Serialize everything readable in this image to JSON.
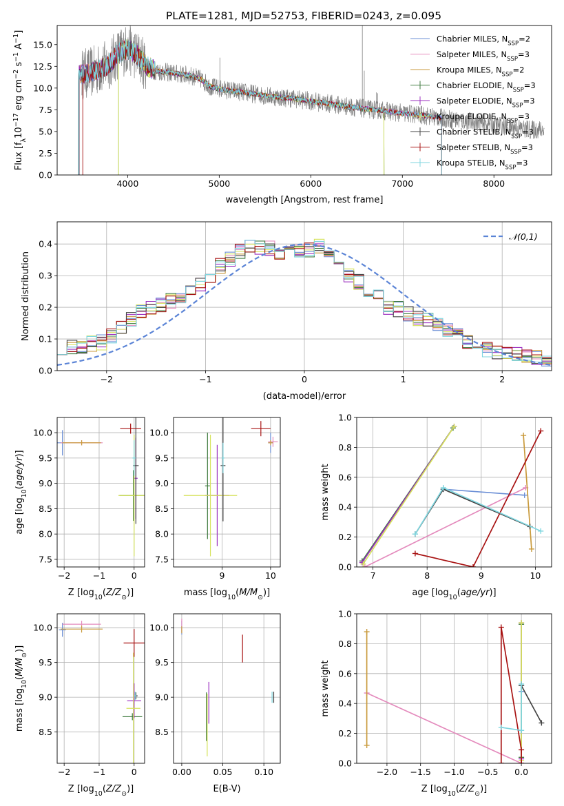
{
  "title": "PLATE=1281, MJD=52753, FIBERID=0243, z=0.095",
  "legend_models": [
    {
      "name": "Chabrier MILES, N",
      "sub": "SSP",
      "tail": "=2",
      "color": "#6b8fd6"
    },
    {
      "name": "Salpeter MILES, N",
      "sub": "SSP",
      "tail": "=3",
      "color": "#e48bbd"
    },
    {
      "name": "Kroupa MILES, N",
      "sub": "SSP",
      "tail": "=2",
      "color": "#c99a3c"
    },
    {
      "name": "Chabrier ELODIE, N",
      "sub": "SSP",
      "tail": "=3",
      "color": "#3f7a3f"
    },
    {
      "name": "Salpeter ELODIE, N",
      "sub": "SSP",
      "tail": "=3",
      "color": "#9b2fbf"
    },
    {
      "name": "Kroupa ELODIE, N",
      "sub": "SSP",
      "tail": "=3",
      "color": "#d6e35c"
    },
    {
      "name": "Chabrier STELIB, N",
      "sub": "SSP",
      "tail": "=3",
      "color": "#444444"
    },
    {
      "name": "Salpeter STELIB, N",
      "sub": "SSP",
      "tail": "=3",
      "color": "#a81313"
    },
    {
      "name": "Kroupa STELIB, N",
      "sub": "SSP",
      "tail": "=3",
      "color": "#7fd6df"
    }
  ],
  "chart_data": [
    {
      "id": "spectrum",
      "type": "line",
      "xlabel": "wavelength [Angstrom, rest frame]",
      "ylabel_parts": {
        "pre": "Flux [f",
        "sub1": "λ",
        "mid": "10",
        "sup1": "−17",
        "post": " erg cm",
        "sup2": "−2",
        "post2": " s",
        "sup3": "−1",
        "post3": " A",
        "sup4": "−1",
        "end": "]"
      },
      "xlim": [
        3230,
        8630
      ],
      "ylim": [
        0,
        17.2
      ],
      "xticks": [
        4000,
        5000,
        6000,
        7000,
        8000
      ],
      "yticks": [
        0.0,
        2.5,
        5.0,
        7.5,
        10.0,
        12.5,
        15.0
      ],
      "data_color": "#808080",
      "model_x": [
        3460,
        3600,
        3700,
        3800,
        3900,
        4000,
        4100,
        4200,
        4300,
        4500,
        4700,
        4800,
        4900,
        5000,
        5200,
        5400,
        5600,
        5800,
        6000,
        6200,
        6400,
        6600,
        6800,
        7000,
        7200,
        7400,
        7600,
        7800,
        8000,
        8200,
        8400
      ],
      "model_y": [
        11.5,
        11.8,
        12.2,
        12.8,
        14.0,
        14.5,
        13.8,
        12.6,
        12.0,
        11.7,
        11.4,
        11.0,
        10.2,
        9.9,
        9.6,
        9.3,
        9.0,
        8.8,
        8.5,
        8.2,
        7.9,
        7.6,
        7.4,
        7.1,
        6.9,
        6.6,
        6.3,
        6.1,
        5.8,
        5.5,
        5.2
      ],
      "data_spikes": [
        [
          4350,
          12.2
        ],
        [
          4862,
          11.0
        ],
        [
          5007,
          13.5
        ],
        [
          6300,
          9.0
        ],
        [
          6563,
          17.2
        ],
        [
          6584,
          12.0
        ],
        [
          6717,
          9.5
        ],
        [
          6731,
          9.4
        ]
      ]
    },
    {
      "id": "residuals",
      "type": "step",
      "xlabel": "(data-model)/error",
      "ylabel": "Normed distribution",
      "xlim": [
        -2.5,
        2.5
      ],
      "ylim": [
        0,
        0.47
      ],
      "xticks": [
        -2,
        -1,
        0,
        1,
        2
      ],
      "yticks": [
        0.0,
        0.1,
        0.2,
        0.3,
        0.4
      ],
      "bin_width": 0.1,
      "hist": [
        0.075,
        0.075,
        0.08,
        0.085,
        0.09,
        0.11,
        0.14,
        0.165,
        0.19,
        0.2,
        0.205,
        0.22,
        0.235,
        0.25,
        0.27,
        0.3,
        0.33,
        0.35,
        0.375,
        0.39,
        0.39,
        0.385,
        0.375,
        0.37,
        0.375,
        0.38,
        0.395,
        0.38,
        0.35,
        0.3,
        0.28,
        0.255,
        0.23,
        0.2,
        0.195,
        0.18,
        0.165,
        0.16,
        0.15,
        0.13,
        0.11,
        0.09,
        0.075,
        0.065,
        0.06,
        0.055,
        0.05,
        0.045,
        0.04,
        0.035
      ],
      "gauss_label": "𝒩(0,1)",
      "gauss_color": "#5b84d6"
    },
    {
      "id": "age-vs-Z",
      "type": "errorbar",
      "xlabel": "Z [log10(Z/Z⊙)]",
      "ylabel": "age  [log10(age/yr)]",
      "xlim": [
        -2.2,
        0.3
      ],
      "ylim": [
        7.35,
        10.3
      ],
      "xticks": [
        -2,
        -1,
        0
      ],
      "yticks": [
        7.5,
        8.0,
        8.5,
        9.0,
        9.5,
        10.0
      ],
      "points": [
        {
          "m": 0,
          "x": -2.05,
          "y": 9.8,
          "xe": 0.15,
          "ye": 0.25
        },
        {
          "m": 1,
          "x": -1.5,
          "y": 9.8,
          "xe": 0.6,
          "ye": 0.05
        },
        {
          "m": 2,
          "x": -1.5,
          "y": 9.8,
          "xe": 0.55,
          "ye": 0.05
        },
        {
          "m": 3,
          "x": -0.02,
          "y": 8.76,
          "xe": 0.4,
          "ye": 0.5
        },
        {
          "m": 4,
          "x": 0.05,
          "y": 9.1,
          "xe": 0.05,
          "ye": 0.8
        },
        {
          "m": 5,
          "x": 0.0,
          "y": 8.76,
          "xe": 0.45,
          "ye": 1.2
        },
        {
          "m": 6,
          "x": 0.05,
          "y": 9.35,
          "xe": 0.08,
          "ye": 1.15
        },
        {
          "m": 7,
          "x": -0.1,
          "y": 10.08,
          "xe": 0.3,
          "ye": 0.1
        },
        {
          "m": 8,
          "x": 0.0,
          "y": 9.5,
          "xe": 0.05,
          "ye": 0.35
        }
      ]
    },
    {
      "id": "age-vs-mass",
      "type": "errorbar",
      "xlabel": "mass [log10(M/M⊙)]",
      "ylabel": "",
      "xlim": [
        8.0,
        10.2
      ],
      "ylim": [
        7.35,
        10.3
      ],
      "xticks": [
        9,
        10
      ],
      "yticks": [
        7.5,
        8.0,
        8.5,
        9.0,
        9.5,
        10.0
      ],
      "points": [
        {
          "m": 0,
          "x": 10.0,
          "y": 9.8,
          "xe": 0.05,
          "ye": 0.2
        },
        {
          "m": 1,
          "x": 10.05,
          "y": 9.82,
          "xe": 0.1,
          "ye": 0.1
        },
        {
          "m": 2,
          "x": 10.0,
          "y": 9.8,
          "xe": 0.05,
          "ye": 0.05
        },
        {
          "m": 3,
          "x": 8.7,
          "y": 8.95,
          "xe": 0.05,
          "ye": 1.05
        },
        {
          "m": 4,
          "x": 8.9,
          "y": 8.76,
          "xe": 0.25,
          "ye": 1.0
        },
        {
          "m": 5,
          "x": 8.76,
          "y": 8.76,
          "xe": 0.55,
          "ye": 1.2
        },
        {
          "m": 6,
          "x": 9.02,
          "y": 9.35,
          "xe": 0.05,
          "ye": 1.1
        },
        {
          "m": 7,
          "x": 9.8,
          "y": 10.08,
          "xe": 0.2,
          "ye": 0.15
        },
        {
          "m": 8,
          "x": 9.02,
          "y": 9.5,
          "xe": 0.03,
          "ye": 0.3
        }
      ]
    },
    {
      "id": "weight-vs-age",
      "type": "line",
      "xlabel": "age  [log10(age/yr)]",
      "ylabel": "mass weight",
      "xlim": [
        6.7,
        10.3
      ],
      "ylim": [
        0,
        1
      ],
      "xticks": [
        7,
        8,
        9,
        10
      ],
      "yticks": [
        0.0,
        0.2,
        0.4,
        0.6,
        0.8,
        1.0
      ],
      "series": [
        {
          "m": 0,
          "x": [
            8.3,
            9.8
          ],
          "y": [
            0.52,
            0.48
          ]
        },
        {
          "m": 1,
          "x": [
            6.85,
            9.82
          ],
          "y": [
            0.0,
            0.53
          ]
        },
        {
          "m": 2,
          "x": [
            9.78,
            9.93
          ],
          "y": [
            0.88,
            0.12
          ]
        },
        {
          "m": 3,
          "x": [
            6.8,
            8.48
          ],
          "y": [
            0.04,
            0.93
          ]
        },
        {
          "m": 4,
          "x": [
            6.8,
            8.5
          ],
          "y": [
            0.03,
            0.94
          ]
        },
        {
          "m": 5,
          "x": [
            6.82,
            8.5
          ],
          "y": [
            0.02,
            0.94
          ]
        },
        {
          "m": 6,
          "x": [
            7.78,
            8.3,
            9.9
          ],
          "y": [
            0.22,
            0.52,
            0.27
          ]
        },
        {
          "m": 7,
          "x": [
            7.78,
            8.85,
            10.1
          ],
          "y": [
            0.09,
            0.0,
            0.91
          ]
        },
        {
          "m": 8,
          "x": [
            7.78,
            8.3,
            10.1
          ],
          "y": [
            0.22,
            0.53,
            0.24
          ]
        }
      ]
    },
    {
      "id": "mass-vs-Z",
      "type": "errorbar",
      "xlabel": "Z [log10(Z/Z⊙)]",
      "ylabel": "mass [log10(M/M⊙)]",
      "xlim": [
        -2.2,
        0.3
      ],
      "ylim": [
        8.05,
        10.2
      ],
      "xticks": [
        -2,
        -1,
        0
      ],
      "yticks": [
        8.5,
        9.0,
        9.5,
        10.0
      ],
      "points": [
        {
          "m": 0,
          "x": -2.05,
          "y": 9.97,
          "xe": 0.1,
          "ye": 0.1
        },
        {
          "m": 1,
          "x": -1.5,
          "y": 10.05,
          "xe": 0.55,
          "ye": 0.05
        },
        {
          "m": 2,
          "x": -1.5,
          "y": 9.98,
          "xe": 0.6,
          "ye": 0.05
        },
        {
          "m": 3,
          "x": -0.05,
          "y": 8.72,
          "xe": 0.28,
          "ye": 0.05
        },
        {
          "m": 4,
          "x": 0.0,
          "y": 8.95,
          "xe": 0.2,
          "ye": 0.25
        },
        {
          "m": 5,
          "x": -0.02,
          "y": 8.84,
          "xe": 0.2,
          "ye": 0.8
        },
        {
          "m": 6,
          "x": 0.05,
          "y": 9.02,
          "xe": 0.05,
          "ye": 0.05
        },
        {
          "m": 7,
          "x": 0.0,
          "y": 9.78,
          "xe": 0.3,
          "ye": 0.2
        },
        {
          "m": 8,
          "x": 0.03,
          "y": 9.02,
          "xe": 0.03,
          "ye": 0.06
        }
      ]
    },
    {
      "id": "mass-vs-ebv",
      "type": "errorbar",
      "xlabel": "E(B-V)",
      "ylabel": "",
      "xlim": [
        -0.01,
        0.12
      ],
      "ylim": [
        8.05,
        10.2
      ],
      "xticks": [
        0.0,
        0.05,
        0.1
      ],
      "yticks": [
        8.5,
        9.0,
        9.5,
        10.0
      ],
      "points": [
        {
          "m": 0,
          "x": 0.0,
          "y": 10.0,
          "xe": 0.0,
          "ye": 0.1
        },
        {
          "m": 1,
          "x": 0.0,
          "y": 10.03,
          "xe": 0.0,
          "ye": 0.1
        },
        {
          "m": 2,
          "x": 0.0,
          "y": 9.97,
          "xe": 0.0,
          "ye": 0.05
        },
        {
          "m": 3,
          "x": 0.03,
          "y": 8.72,
          "xe": 0.0,
          "ye": 0.35
        },
        {
          "m": 4,
          "x": 0.033,
          "y": 8.92,
          "xe": 0.0,
          "ye": 0.3
        },
        {
          "m": 5,
          "x": 0.031,
          "y": 8.6,
          "xe": 0.0,
          "ye": 0.45
        },
        {
          "m": 6,
          "x": 0.112,
          "y": 9.0,
          "xe": 0.0,
          "ye": 0.08
        },
        {
          "m": 7,
          "x": 0.074,
          "y": 9.7,
          "xe": 0.0,
          "ye": 0.2
        },
        {
          "m": 8,
          "x": 0.11,
          "y": 9.0,
          "xe": 0.0,
          "ye": 0.08
        }
      ]
    },
    {
      "id": "weight-vs-Z",
      "type": "line",
      "xlabel": "Z [log10(Z/Z⊙)]",
      "ylabel": "mass weight",
      "xlim": [
        -2.45,
        0.45
      ],
      "ylim": [
        0,
        1
      ],
      "xticks": [
        -2.0,
        -1.5,
        -1.0,
        -0.5,
        0.0
      ],
      "yticks": [
        0.0,
        0.2,
        0.4,
        0.6,
        0.8,
        1.0
      ],
      "series": [
        {
          "m": 0,
          "x": [
            0.0,
            0.0
          ],
          "y": [
            0.52,
            0.48
          ]
        },
        {
          "m": 1,
          "x": [
            -2.3,
            0.0
          ],
          "y": [
            0.47,
            0.0
          ]
        },
        {
          "m": 2,
          "x": [
            -2.3,
            -2.3
          ],
          "y": [
            0.88,
            0.12
          ]
        },
        {
          "m": 3,
          "x": [
            0.0,
            0.0
          ],
          "y": [
            0.04,
            0.93
          ]
        },
        {
          "m": 4,
          "x": [
            0.0,
            0.0
          ],
          "y": [
            0.03,
            0.94
          ]
        },
        {
          "m": 5,
          "x": [
            0.0,
            0.0
          ],
          "y": [
            0.02,
            0.94
          ]
        },
        {
          "m": 6,
          "x": [
            0.0,
            0.0,
            0.3
          ],
          "y": [
            0.52,
            0.52,
            0.27
          ]
        },
        {
          "m": 7,
          "x": [
            -0.3,
            -0.3,
            0.0,
            0.0
          ],
          "y": [
            0.0,
            0.91,
            0.09,
            0.0
          ]
        },
        {
          "m": 8,
          "x": [
            -0.3,
            0.0,
            0.0,
            0.0
          ],
          "y": [
            0.24,
            0.22,
            0.53,
            0.22
          ]
        }
      ]
    }
  ]
}
